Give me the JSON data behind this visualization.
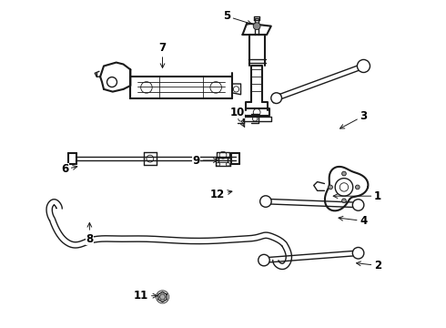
{
  "background_color": "#ffffff",
  "line_color": "#1a1a1a",
  "label_color": "#000000",
  "figure_width": 4.9,
  "figure_height": 3.6,
  "dpi": 100,
  "labels": {
    "1": [
      0.935,
      0.455,
      0.8,
      0.455
    ],
    "2": [
      0.935,
      0.26,
      0.865,
      0.268
    ],
    "3": [
      0.895,
      0.68,
      0.82,
      0.64
    ],
    "4": [
      0.895,
      0.385,
      0.815,
      0.395
    ],
    "5": [
      0.51,
      0.96,
      0.59,
      0.935
    ],
    "6": [
      0.055,
      0.53,
      0.1,
      0.54
    ],
    "7": [
      0.33,
      0.87,
      0.33,
      0.805
    ],
    "8": [
      0.125,
      0.335,
      0.125,
      0.39
    ],
    "9": [
      0.425,
      0.555,
      0.495,
      0.555
    ],
    "10": [
      0.54,
      0.69,
      0.565,
      0.64
    ],
    "11": [
      0.27,
      0.175,
      0.325,
      0.175
    ],
    "12": [
      0.485,
      0.46,
      0.535,
      0.47
    ]
  }
}
